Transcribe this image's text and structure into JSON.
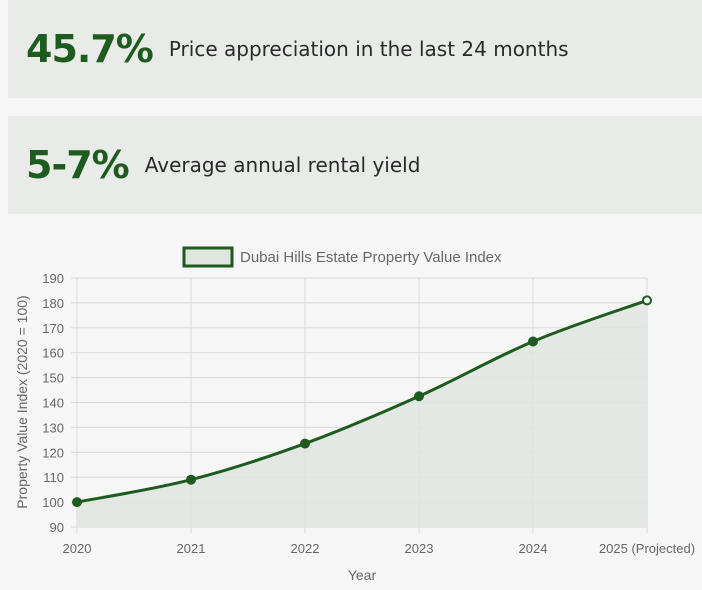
{
  "stats": [
    {
      "value": "45.7%",
      "label": "Price appreciation in the last 24 months"
    },
    {
      "value": "5-7%",
      "label": "Average annual rental yield"
    }
  ],
  "chart_data": {
    "type": "line",
    "categories": [
      "2020",
      "2021",
      "2022",
      "2023",
      "2024",
      "2025 (Projected)"
    ],
    "series": [
      {
        "name": "Dubai Hills Estate Property Value Index",
        "values": [
          100,
          109,
          123.5,
          142.5,
          164.5,
          181
        ]
      }
    ],
    "xlabel": "Year",
    "ylabel": "Property Value Index (2020 = 100)",
    "ylim": [
      90,
      190
    ],
    "yticks": [
      "90",
      "100",
      "110",
      "120",
      "130",
      "140",
      "150",
      "160",
      "170",
      "180",
      "190"
    ],
    "grid": true,
    "fill": true,
    "legend_position": "top",
    "colors": {
      "line": "#1e5b1e",
      "fill": "#e0e5e0",
      "grid": "#d9d9d9",
      "text": "#666666"
    }
  }
}
